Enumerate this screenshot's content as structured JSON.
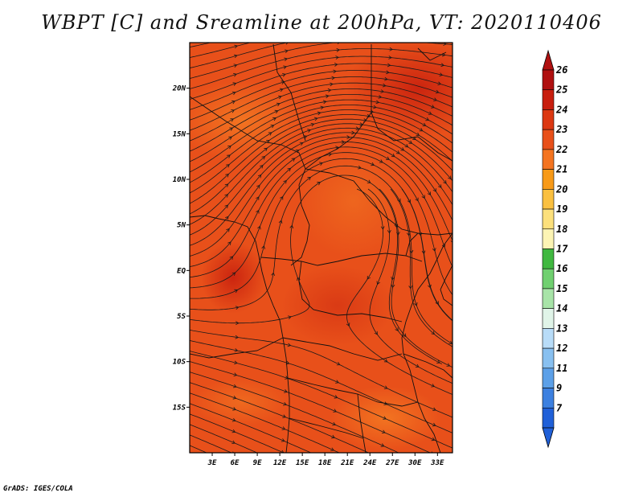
{
  "title": "WBPT [C] and Sreamline at 200hPa, VT: 2020110406",
  "credit": "GrADS: IGES/COLA",
  "map": {
    "lat_labels": [
      "20N",
      "15N",
      "10N",
      "5N",
      "EQ",
      "5S",
      "10S",
      "15S"
    ],
    "lat_values": [
      20,
      15,
      10,
      5,
      0,
      -5,
      -10,
      -15
    ],
    "lon_labels": [
      "3E",
      "6E",
      "9E",
      "12E",
      "15E",
      "18E",
      "21E",
      "24E",
      "27E",
      "30E",
      "33E"
    ],
    "lon_values": [
      3,
      6,
      9,
      12,
      15,
      18,
      21,
      24,
      27,
      30,
      33
    ],
    "lon_range": [
      0,
      35
    ],
    "lat_range": [
      -20,
      25
    ],
    "field_color": "#e8501a",
    "streamline_color": "#1a1a1a"
  },
  "colorbar": {
    "labels": [
      "26",
      "25",
      "24",
      "23",
      "22",
      "21",
      "20",
      "19",
      "18",
      "17",
      "16",
      "15",
      "14",
      "13",
      "12",
      "11",
      "9",
      "7"
    ],
    "colors": [
      "#b01010",
      "#c81e0e",
      "#dc3812",
      "#e8501a",
      "#f47420",
      "#f89a18",
      "#fac040",
      "#fce07c",
      "#fcf4b4",
      "#40b840",
      "#70d070",
      "#a8e4a8",
      "#e0f4e8",
      "#b8dcf8",
      "#88c0f0",
      "#5ca0e8",
      "#3c80e0",
      "#2060d8"
    ]
  }
}
